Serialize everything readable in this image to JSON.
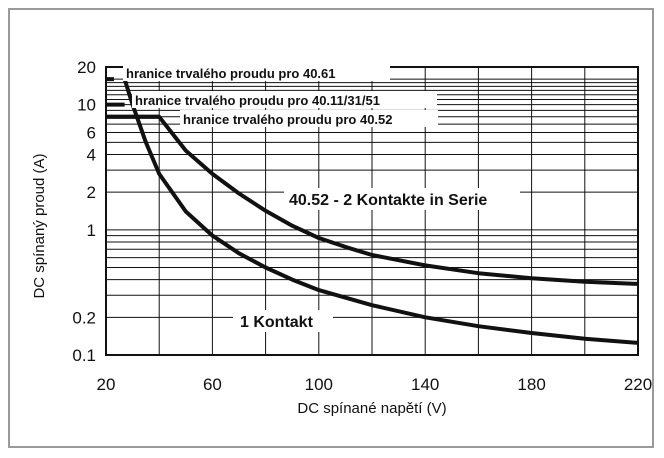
{
  "chart_data": {
    "type": "line",
    "xlabel": "DC spínané napětí (V)",
    "ylabel": "DC spínaný proud (A)",
    "xlim": [
      20,
      220
    ],
    "ylim": [
      0.1,
      20
    ],
    "yscale": "log",
    "grid": true,
    "x_ticks": [
      20,
      60,
      100,
      140,
      180,
      220
    ],
    "x_tick_labels": [
      "20",
      "60",
      "100",
      "140",
      "180",
      "220"
    ],
    "y_ticks": [
      20,
      10,
      6,
      4,
      2,
      1,
      0.2,
      0.1
    ],
    "y_tick_labels": [
      "20",
      "10",
      "6",
      "4",
      "2",
      "1",
      "0.2",
      "0.1"
    ],
    "y_grid": [
      20,
      16,
      15,
      14,
      13,
      12,
      11,
      10,
      9,
      8,
      7,
      6,
      5,
      4,
      3,
      2,
      1,
      0.9,
      0.8,
      0.7,
      0.6,
      0.5,
      0.4,
      0.3,
      0.2,
      0.1
    ],
    "series": [
      {
        "name": "40.52 - 2 Kontakte in Serie",
        "x": [
          20,
          40,
          50,
          60,
          70,
          80,
          90,
          100,
          110,
          120,
          140,
          160,
          180,
          200,
          220
        ],
        "values": [
          8,
          8,
          4.3,
          2.8,
          1.95,
          1.42,
          1.08,
          0.86,
          0.73,
          0.63,
          0.52,
          0.45,
          0.41,
          0.385,
          0.37
        ]
      },
      {
        "name": "1 Kontakt",
        "x": [
          27,
          30,
          35,
          40,
          50,
          60,
          70,
          80,
          90,
          100,
          120,
          140,
          160,
          180,
          200,
          220
        ],
        "values": [
          16,
          10,
          5,
          2.8,
          1.4,
          0.9,
          0.65,
          0.5,
          0.4,
          0.33,
          0.25,
          0.2,
          0.17,
          0.15,
          0.135,
          0.125
        ]
      }
    ],
    "limits": [
      {
        "label": "hranice trvalého proudu pro 40.61",
        "value": 16,
        "x_end": 23
      },
      {
        "label": "hranice trvalého proudu pro 40.11/31/51",
        "value": 10,
        "x_end": 27
      },
      {
        "label": "hranice trvalého proudu pro 40.52",
        "value": 8,
        "x_end": 40
      }
    ],
    "annotations": [
      {
        "text": "40.52 - 2 Kontakte in Serie"
      },
      {
        "text": "1 Kontakt"
      }
    ]
  }
}
